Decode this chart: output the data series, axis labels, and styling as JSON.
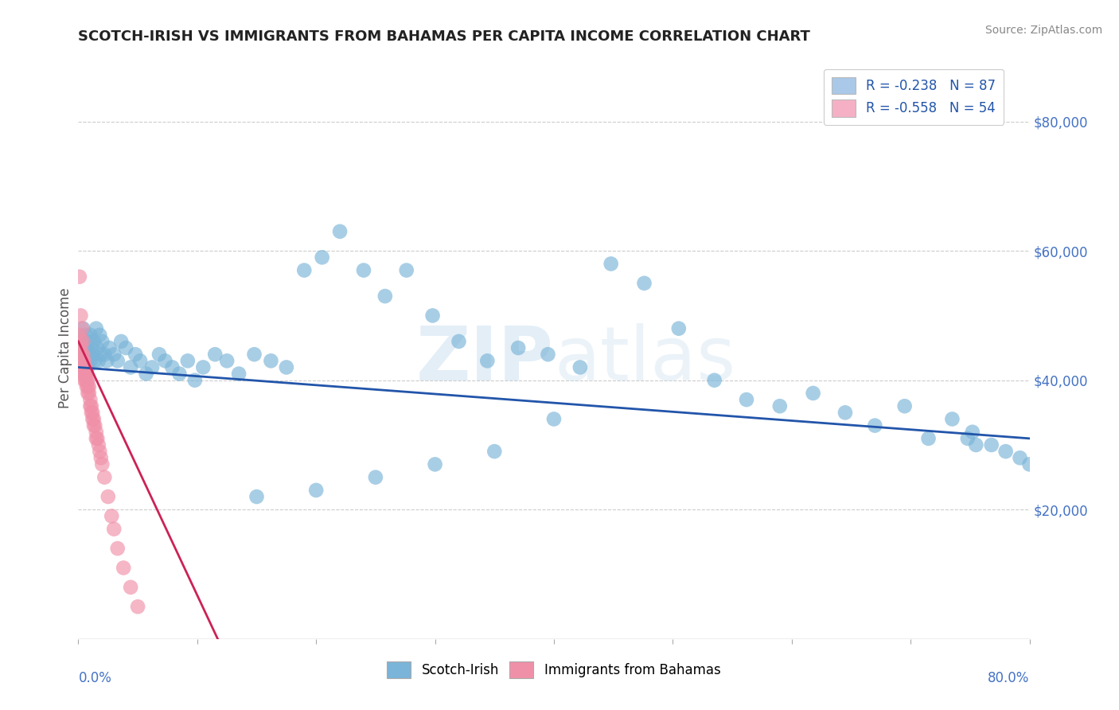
{
  "title": "SCOTCH-IRISH VS IMMIGRANTS FROM BAHAMAS PER CAPITA INCOME CORRELATION CHART",
  "source": "Source: ZipAtlas.com",
  "ylabel": "Per Capita Income",
  "yticks": [
    20000,
    40000,
    60000,
    80000
  ],
  "ytick_labels": [
    "$20,000",
    "$40,000",
    "$60,000",
    "$80,000"
  ],
  "watermark": "ZIPAtlas",
  "legend_entries": [
    {
      "label": "R = -0.238   N = 87",
      "color": "#aac8e8"
    },
    {
      "label": "R = -0.558   N = 54",
      "color": "#f5b0c5"
    }
  ],
  "scotch_irish_color": "#7ab4d8",
  "bahamas_color": "#f090a8",
  "scotch_irish_line_color": "#2255aa",
  "bahamas_line_color": "#cc2255",
  "scotch_irish_scatter": {
    "x": [
      0.002,
      0.003,
      0.004,
      0.004,
      0.005,
      0.005,
      0.006,
      0.006,
      0.007,
      0.007,
      0.008,
      0.008,
      0.009,
      0.01,
      0.01,
      0.011,
      0.012,
      0.013,
      0.014,
      0.015,
      0.016,
      0.017,
      0.018,
      0.019,
      0.02,
      0.022,
      0.024,
      0.026,
      0.03,
      0.033,
      0.036,
      0.04,
      0.044,
      0.048,
      0.052,
      0.057,
      0.062,
      0.068,
      0.073,
      0.079,
      0.085,
      0.092,
      0.098,
      0.105,
      0.115,
      0.125,
      0.135,
      0.148,
      0.162,
      0.175,
      0.19,
      0.205,
      0.22,
      0.24,
      0.258,
      0.276,
      0.298,
      0.32,
      0.344,
      0.37,
      0.395,
      0.422,
      0.448,
      0.476,
      0.505,
      0.535,
      0.562,
      0.59,
      0.618,
      0.645,
      0.67,
      0.695,
      0.715,
      0.735,
      0.752,
      0.768,
      0.78,
      0.792,
      0.8,
      0.755,
      0.748,
      0.4,
      0.35,
      0.3,
      0.25,
      0.2,
      0.15
    ],
    "y": [
      46000,
      44000,
      48000,
      42000,
      45000,
      43000,
      47000,
      41000,
      44000,
      43000,
      42000,
      46000,
      44000,
      43000,
      47000,
      45000,
      44000,
      46000,
      43000,
      48000,
      45000,
      43000,
      47000,
      44000,
      46000,
      44000,
      43000,
      45000,
      44000,
      43000,
      46000,
      45000,
      42000,
      44000,
      43000,
      41000,
      42000,
      44000,
      43000,
      42000,
      41000,
      43000,
      40000,
      42000,
      44000,
      43000,
      41000,
      44000,
      43000,
      42000,
      57000,
      59000,
      63000,
      57000,
      53000,
      57000,
      50000,
      46000,
      43000,
      45000,
      44000,
      42000,
      58000,
      55000,
      48000,
      40000,
      37000,
      36000,
      38000,
      35000,
      33000,
      36000,
      31000,
      34000,
      32000,
      30000,
      29000,
      28000,
      27000,
      30000,
      31000,
      34000,
      29000,
      27000,
      25000,
      23000,
      22000
    ]
  },
  "bahamas_scatter": {
    "x": [
      0.001,
      0.001,
      0.002,
      0.002,
      0.002,
      0.003,
      0.003,
      0.003,
      0.004,
      0.004,
      0.004,
      0.005,
      0.005,
      0.005,
      0.005,
      0.006,
      0.006,
      0.006,
      0.007,
      0.007,
      0.007,
      0.008,
      0.008,
      0.008,
      0.009,
      0.009,
      0.01,
      0.01,
      0.011,
      0.011,
      0.012,
      0.012,
      0.013,
      0.013,
      0.014,
      0.015,
      0.015,
      0.016,
      0.017,
      0.018,
      0.019,
      0.02,
      0.022,
      0.025,
      0.028,
      0.03,
      0.033,
      0.038,
      0.044,
      0.05,
      0.001,
      0.002,
      0.003,
      0.004
    ],
    "y": [
      47000,
      44000,
      45000,
      43000,
      46000,
      44000,
      43000,
      42000,
      43000,
      41000,
      44000,
      42000,
      41000,
      40000,
      43000,
      42000,
      41000,
      40000,
      41000,
      40000,
      39000,
      40000,
      39000,
      38000,
      39000,
      38000,
      37000,
      36000,
      36000,
      35000,
      35000,
      34000,
      34000,
      33000,
      33000,
      32000,
      31000,
      31000,
      30000,
      29000,
      28000,
      27000,
      25000,
      22000,
      19000,
      17000,
      14000,
      11000,
      8000,
      5000,
      56000,
      50000,
      48000,
      46000
    ]
  },
  "xlim": [
    0,
    0.8
  ],
  "ylim": [
    0,
    90000
  ],
  "background_color": "#ffffff",
  "grid_color": "#cccccc",
  "title_color": "#222222",
  "axis_label_color": "#4472c4",
  "source_color": "#888888",
  "scotch_irish_line_endpoints": [
    [
      0,
      42000
    ],
    [
      0.8,
      31000
    ]
  ],
  "bahamas_line_solid_endpoints": [
    [
      0,
      46000
    ],
    [
      0.13,
      -5000
    ]
  ],
  "bahamas_line_dash_endpoints": [
    [
      0.1,
      10000
    ],
    [
      0.22,
      -20000
    ]
  ]
}
